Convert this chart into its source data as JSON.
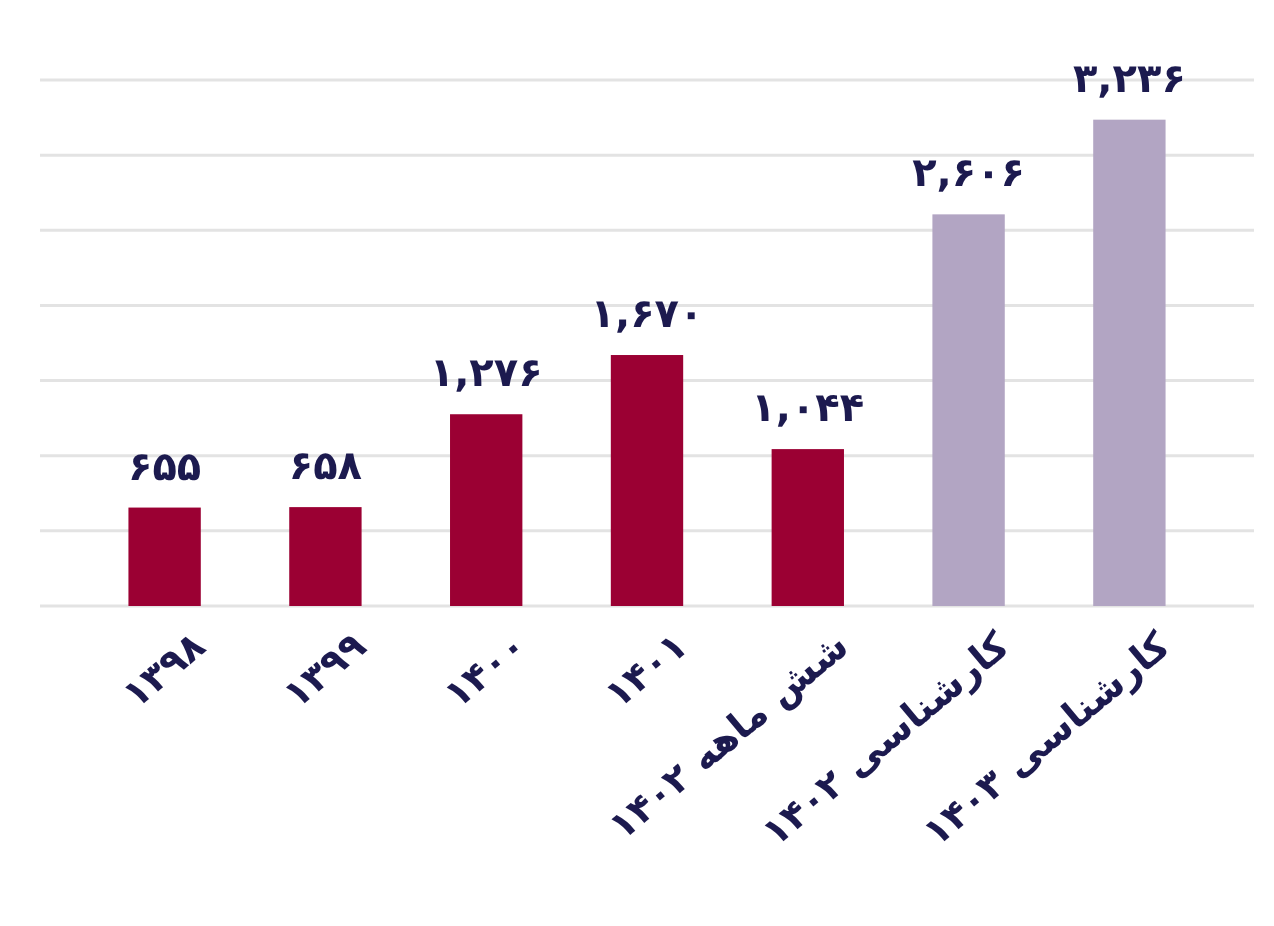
{
  "chart_data": {
    "type": "bar",
    "categories": [
      "۱۳۹۸",
      "۱۳۹۹",
      "۱۴۰۰",
      "۱۴۰۱",
      "شش ماهه ۱۴۰۲",
      "کارشناسی ۱۴۰۲",
      "کارشناسی ۱۴۰۳"
    ],
    "values": [
      655,
      658,
      1276,
      1670,
      1044,
      2606,
      3236
    ],
    "colors": [
      "#9b0033",
      "#9b0033",
      "#9b0033",
      "#9b0033",
      "#9b0033",
      "#b2a5c3",
      "#b2a5c3"
    ],
    "value_labels": [
      "۶۵۵",
      "۶۵۸",
      "۱,۲۷۶",
      "۱,۶۷۰",
      "۱,۰۴۴",
      "۲,۶۰۶",
      "۳,۲۳۶"
    ],
    "ylim": [
      0,
      3500
    ],
    "yticks": [
      {
        "value": 0,
        "label": null
      },
      {
        "value": 500,
        "label": null
      },
      {
        "value": 1000,
        "label": null
      },
      {
        "value": 1500,
        "label": null
      },
      {
        "value": 2000,
        "label": null
      },
      {
        "value": 2500,
        "label": null
      },
      {
        "value": 3000,
        "label": null
      },
      {
        "value": 3500,
        "label": null
      }
    ],
    "grid": "y",
    "tick_labels": "x"
  }
}
